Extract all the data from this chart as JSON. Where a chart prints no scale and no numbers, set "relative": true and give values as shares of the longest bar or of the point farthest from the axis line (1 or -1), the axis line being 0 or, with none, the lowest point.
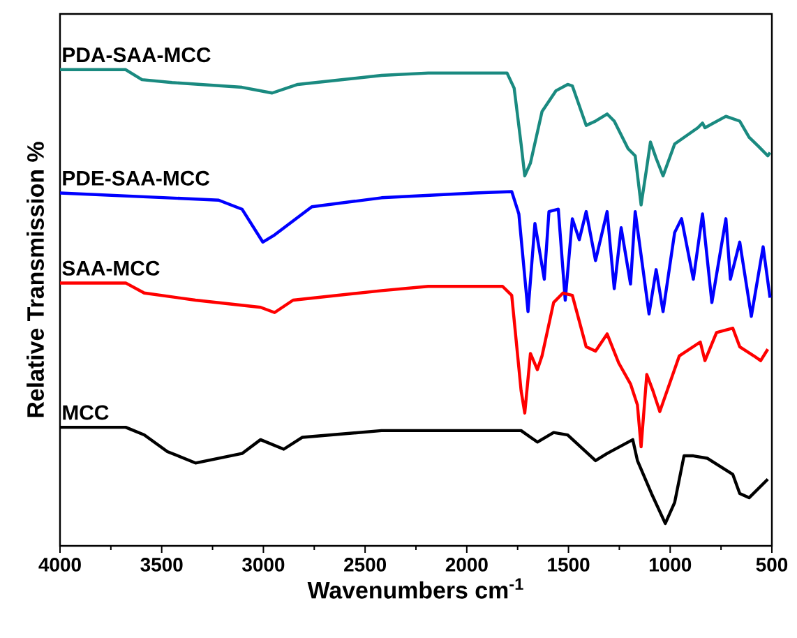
{
  "chart_data": {
    "type": "line",
    "relative": true,
    "xlabel": "Wavenumbers cm$^{-1}$",
    "ylabel": "Relative Transmission %",
    "xlim": [
      4000,
      500
    ],
    "xticks": [
      4000,
      3500,
      3000,
      2500,
      2000,
      1500,
      1000,
      500
    ],
    "tick_labels": "x",
    "grid": false,
    "legend": false,
    "marker": "none",
    "line_style": "solid",
    "series": [
      {
        "name": "PDA-SAA-MCC",
        "color": "#1a8a80",
        "x": [
          4000,
          3677,
          3597,
          3449,
          3105,
          2957,
          2831,
          2419,
          2190,
          1802,
          1767,
          1733,
          1715,
          1687,
          1630,
          1561,
          1504,
          1481,
          1413,
          1367,
          1310,
          1275,
          1207,
          1172,
          1143,
          1115,
          1097,
          1069,
          1035,
          978,
          864,
          841,
          829,
          726,
          658,
          612,
          566,
          520,
          509
        ],
        "values": [
          1.0,
          1.0,
          0.979,
          0.973,
          0.963,
          0.951,
          0.969,
          0.988,
          0.993,
          0.993,
          0.961,
          0.844,
          0.777,
          0.804,
          0.912,
          0.956,
          0.969,
          0.966,
          0.883,
          0.892,
          0.907,
          0.892,
          0.834,
          0.819,
          0.716,
          0.795,
          0.848,
          0.814,
          0.777,
          0.844,
          0.878,
          0.888,
          0.878,
          0.902,
          0.892,
          0.858,
          0.839,
          0.819,
          0.826
        ]
      },
      {
        "name": "PDE-SAA-MCC",
        "color": "#0000ff",
        "x": [
          4000,
          3220,
          3105,
          3003,
          2945,
          2762,
          2419,
          1962,
          1779,
          1744,
          1699,
          1665,
          1619,
          1596,
          1550,
          1516,
          1481,
          1447,
          1413,
          1367,
          1310,
          1275,
          1241,
          1195,
          1172,
          1104,
          1069,
          1035,
          978,
          944,
          886,
          841,
          795,
          726,
          704,
          658,
          601,
          543,
          509
        ],
        "values": [
          0.741,
          0.726,
          0.707,
          0.638,
          0.653,
          0.712,
          0.731,
          0.741,
          0.744,
          0.697,
          0.492,
          0.677,
          0.56,
          0.702,
          0.707,
          0.516,
          0.687,
          0.643,
          0.702,
          0.599,
          0.702,
          0.54,
          0.668,
          0.55,
          0.702,
          0.487,
          0.58,
          0.492,
          0.658,
          0.687,
          0.56,
          0.697,
          0.511,
          0.687,
          0.56,
          0.638,
          0.482,
          0.628,
          0.521
        ]
      },
      {
        "name": "SAA-MCC",
        "color": "#ff0000",
        "x": [
          4000,
          3677,
          3586,
          3334,
          3014,
          2945,
          2854,
          2419,
          2190,
          1824,
          1779,
          1733,
          1715,
          1687,
          1653,
          1630,
          1573,
          1527,
          1481,
          1413,
          1367,
          1310,
          1253,
          1195,
          1161,
          1143,
          1115,
          1085,
          1051,
          955,
          852,
          829,
          772,
          692,
          658,
          589,
          555,
          520
        ],
        "values": [
          0.552,
          0.552,
          0.531,
          0.516,
          0.501,
          0.49,
          0.516,
          0.536,
          0.545,
          0.545,
          0.526,
          0.326,
          0.279,
          0.404,
          0.37,
          0.399,
          0.511,
          0.531,
          0.526,
          0.418,
          0.409,
          0.445,
          0.384,
          0.34,
          0.296,
          0.208,
          0.36,
          0.326,
          0.282,
          0.399,
          0.428,
          0.389,
          0.448,
          0.457,
          0.418,
          0.399,
          0.389,
          0.413
        ]
      },
      {
        "name": "MCC",
        "color": "#000000",
        "x": [
          4000,
          3677,
          3586,
          3472,
          3334,
          3105,
          3014,
          2900,
          2808,
          2419,
          1733,
          1653,
          1573,
          1504,
          1367,
          1310,
          1184,
          1161,
          1092,
          1024,
          978,
          932,
          886,
          818,
          692,
          658,
          612,
          520
        ],
        "values": [
          0.249,
          0.249,
          0.233,
          0.198,
          0.174,
          0.194,
          0.223,
          0.203,
          0.228,
          0.242,
          0.242,
          0.218,
          0.238,
          0.233,
          0.179,
          0.194,
          0.223,
          0.179,
          0.11,
          0.047,
          0.091,
          0.189,
          0.189,
          0.184,
          0.15,
          0.11,
          0.101,
          0.14
        ]
      }
    ]
  }
}
